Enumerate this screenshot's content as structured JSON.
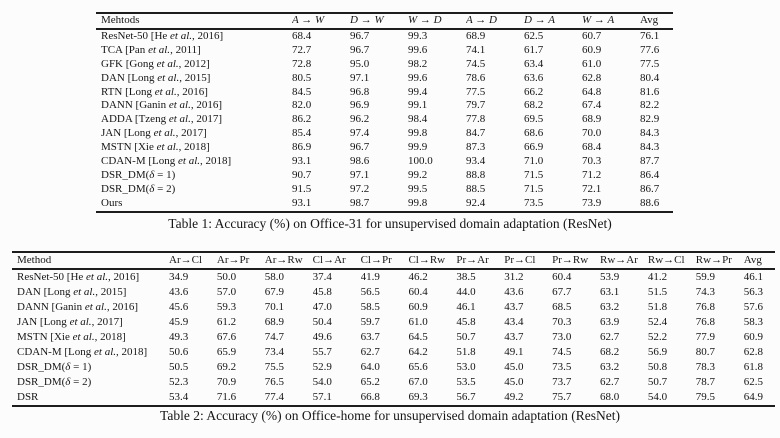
{
  "table1": {
    "caption": "Table 1: Accuracy (%) on Office-31 for unsupervised domain adaptation (ResNet)",
    "columns": [
      {
        "label": "Mehtods",
        "math": false
      },
      {
        "label": "A → W",
        "math": true
      },
      {
        "label": "D → W",
        "math": true
      },
      {
        "label": "W → D",
        "math": true
      },
      {
        "label": "A → D",
        "math": true
      },
      {
        "label": "D → A",
        "math": true
      },
      {
        "label": "W → A",
        "math": true
      },
      {
        "label": "Avg",
        "math": false
      }
    ],
    "rows": [
      {
        "method": "ResNet-50 [He et al., 2016]",
        "values": [
          "68.4",
          "96.7",
          "99.3",
          "68.9",
          "62.5",
          "60.7",
          "76.1"
        ],
        "bold": []
      },
      {
        "method": "TCA [Pan et al., 2011]",
        "values": [
          "72.7",
          "96.7",
          "99.6",
          "74.1",
          "61.7",
          "60.9",
          "77.6"
        ],
        "bold": []
      },
      {
        "method": "GFK [Gong et al., 2012]",
        "values": [
          "72.8",
          "95.0",
          "98.2",
          "74.5",
          "63.4",
          "61.0",
          "77.5"
        ],
        "bold": []
      },
      {
        "method": "DAN [Long et al., 2015]",
        "values": [
          "80.5",
          "97.1",
          "99.6",
          "78.6",
          "63.6",
          "62.8",
          "80.4"
        ],
        "bold": []
      },
      {
        "method": "RTN [Long et al., 2016]",
        "values": [
          "84.5",
          "96.8",
          "99.4",
          "77.5",
          "66.2",
          "64.8",
          "81.6"
        ],
        "bold": []
      },
      {
        "method": "DANN [Ganin et al., 2016]",
        "values": [
          "82.0",
          "96.9",
          "99.1",
          "79.7",
          "68.2",
          "67.4",
          "82.2"
        ],
        "bold": []
      },
      {
        "method": "ADDA [Tzeng et al., 2017]",
        "values": [
          "86.2",
          "96.2",
          "98.4",
          "77.8",
          "69.5",
          "68.9",
          "82.9"
        ],
        "bold": []
      },
      {
        "method": "JAN [Long et al., 2017]",
        "values": [
          "85.4",
          "97.4",
          "99.8",
          "84.7",
          "68.6",
          "70.0",
          "84.3"
        ],
        "bold": []
      },
      {
        "method": "MSTN [Xie et al., 2018]",
        "values": [
          "86.9",
          "96.7",
          "99.9",
          "87.3",
          "66.9",
          "68.4",
          "84.3"
        ],
        "bold": []
      },
      {
        "method": "CDAN-M [Long et al., 2018]",
        "values": [
          "93.1",
          "98.6",
          "100.0",
          "93.4",
          "71.0",
          "70.3",
          "87.7"
        ],
        "bold": [
          0,
          2,
          3
        ]
      },
      {
        "method": "DSR_DM(δ = 1)",
        "values": [
          "90.7",
          "97.1",
          "99.2",
          "88.8",
          "71.5",
          "71.2",
          "86.4"
        ],
        "bold": []
      },
      {
        "method": "DSR_DM(δ = 2)",
        "values": [
          "91.5",
          "97.2",
          "99.5",
          "88.5",
          "71.5",
          "72.1",
          "86.7"
        ],
        "bold": []
      },
      {
        "method": "Ours",
        "values": [
          "93.1",
          "98.7",
          "99.8",
          "92.4",
          "73.5",
          "73.9",
          "88.6"
        ],
        "bold": [
          0,
          1,
          4,
          5,
          6
        ]
      }
    ]
  },
  "table2": {
    "caption": "Table 2: Accuracy (%) on Office-home for unsupervised domain adaptation (ResNet)",
    "columns": [
      {
        "label": "Method",
        "math": false
      },
      {
        "label": "Ar→Cl",
        "math": false
      },
      {
        "label": "Ar→Pr",
        "math": false
      },
      {
        "label": "Ar→Rw",
        "math": false
      },
      {
        "label": "Cl→Ar",
        "math": false
      },
      {
        "label": "Cl→Pr",
        "math": false
      },
      {
        "label": "Cl→Rw",
        "math": false
      },
      {
        "label": "Pr→Ar",
        "math": false
      },
      {
        "label": "Pr→Cl",
        "math": false
      },
      {
        "label": "Pr→Rw",
        "math": false
      },
      {
        "label": "Rw→Ar",
        "math": false
      },
      {
        "label": "Rw→Cl",
        "math": false
      },
      {
        "label": "Rw→Pr",
        "math": false
      },
      {
        "label": "Avg",
        "math": false
      }
    ],
    "rows": [
      {
        "method": "ResNet-50 [He et al., 2016]",
        "values": [
          "34.9",
          "50.0",
          "58.0",
          "37.4",
          "41.9",
          "46.2",
          "38.5",
          "31.2",
          "60.4",
          "53.9",
          "41.2",
          "59.9",
          "46.1"
        ],
        "bold": []
      },
      {
        "method": "DAN [Long et al., 2015]",
        "values": [
          "43.6",
          "57.0",
          "67.9",
          "45.8",
          "56.5",
          "60.4",
          "44.0",
          "43.6",
          "67.7",
          "63.1",
          "51.5",
          "74.3",
          "56.3"
        ],
        "bold": []
      },
      {
        "method": "DANN [Ganin et al., 2016]",
        "values": [
          "45.6",
          "59.3",
          "70.1",
          "47.0",
          "58.5",
          "60.9",
          "46.1",
          "43.7",
          "68.5",
          "63.2",
          "51.8",
          "76.8",
          "57.6"
        ],
        "bold": []
      },
      {
        "method": "JAN [Long et al., 2017]",
        "values": [
          "45.9",
          "61.2",
          "68.9",
          "50.4",
          "59.7",
          "61.0",
          "45.8",
          "43.4",
          "70.3",
          "63.9",
          "52.4",
          "76.8",
          "58.3"
        ],
        "bold": []
      },
      {
        "method": "MSTN [Xie et al., 2018]",
        "values": [
          "49.3",
          "67.6",
          "74.7",
          "49.6",
          "63.7",
          "64.5",
          "50.7",
          "43.7",
          "73.0",
          "62.7",
          "52.2",
          "77.9",
          "60.9"
        ],
        "bold": []
      },
      {
        "method": "CDAN-M [Long et al., 2018]",
        "values": [
          "50.6",
          "65.9",
          "73.4",
          "55.7",
          "62.7",
          "64.2",
          "51.8",
          "49.1",
          "74.5",
          "68.2",
          "56.9",
          "80.7",
          "62.8"
        ],
        "bold": [
          9,
          10,
          11
        ]
      },
      {
        "method": "DSR_DM(δ = 1)",
        "values": [
          "50.5",
          "69.2",
          "75.5",
          "52.9",
          "64.0",
          "65.6",
          "53.0",
          "45.0",
          "73.5",
          "63.2",
          "50.8",
          "78.3",
          "61.8"
        ],
        "bold": []
      },
      {
        "method": "DSR_DM(δ = 2)",
        "values": [
          "52.3",
          "70.9",
          "76.5",
          "54.0",
          "65.2",
          "67.0",
          "53.5",
          "45.0",
          "73.7",
          "62.7",
          "50.7",
          "78.7",
          "62.5"
        ],
        "bold": []
      },
      {
        "method": "DSR",
        "values": [
          "53.4",
          "71.6",
          "77.4",
          "57.1",
          "66.8",
          "69.3",
          "56.7",
          "49.2",
          "75.7",
          "68.0",
          "54.0",
          "79.5",
          "64.9"
        ],
        "bold": [
          0,
          1,
          2,
          3,
          4,
          5,
          6,
          7,
          8,
          12
        ]
      }
    ]
  }
}
